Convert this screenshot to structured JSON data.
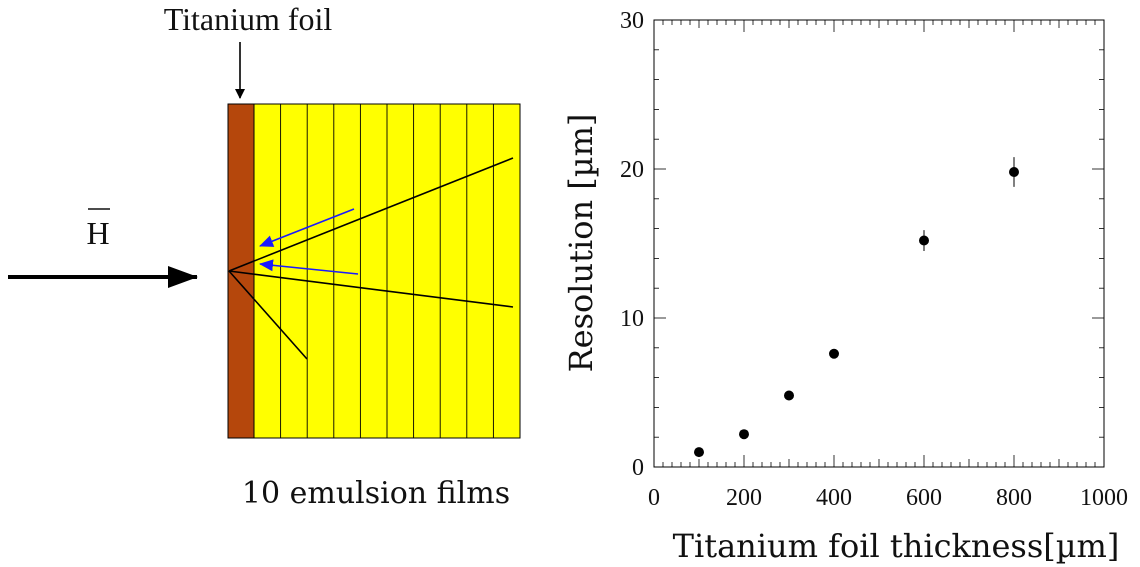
{
  "diagram": {
    "foil_label": "Titanium foil",
    "beam_label": "H",
    "films_label": "10 emulsion films",
    "film_count": 10,
    "colors": {
      "foil": "#b5470c",
      "emulsion": "#ffff00",
      "track": "#000000",
      "extrapolation": "#1a1aff"
    }
  },
  "chart_data": {
    "type": "scatter",
    "title": "",
    "xlabel": "Titanium foil thickness[µm]",
    "ylabel": "Resolution [µm]",
    "xlim": [
      0,
      1000
    ],
    "ylim": [
      0,
      30
    ],
    "xticks": [
      0,
      200,
      400,
      600,
      800,
      1000
    ],
    "yticks": [
      0,
      10,
      20,
      30
    ],
    "points": [
      {
        "x": 100,
        "y": 1.0,
        "err": 0.2
      },
      {
        "x": 200,
        "y": 2.2,
        "err": 0.2
      },
      {
        "x": 300,
        "y": 4.8,
        "err": 0.3
      },
      {
        "x": 400,
        "y": 7.6,
        "err": 0.3
      },
      {
        "x": 600,
        "y": 15.2,
        "err": 0.7
      },
      {
        "x": 800,
        "y": 19.8,
        "err": 1.0
      }
    ]
  }
}
